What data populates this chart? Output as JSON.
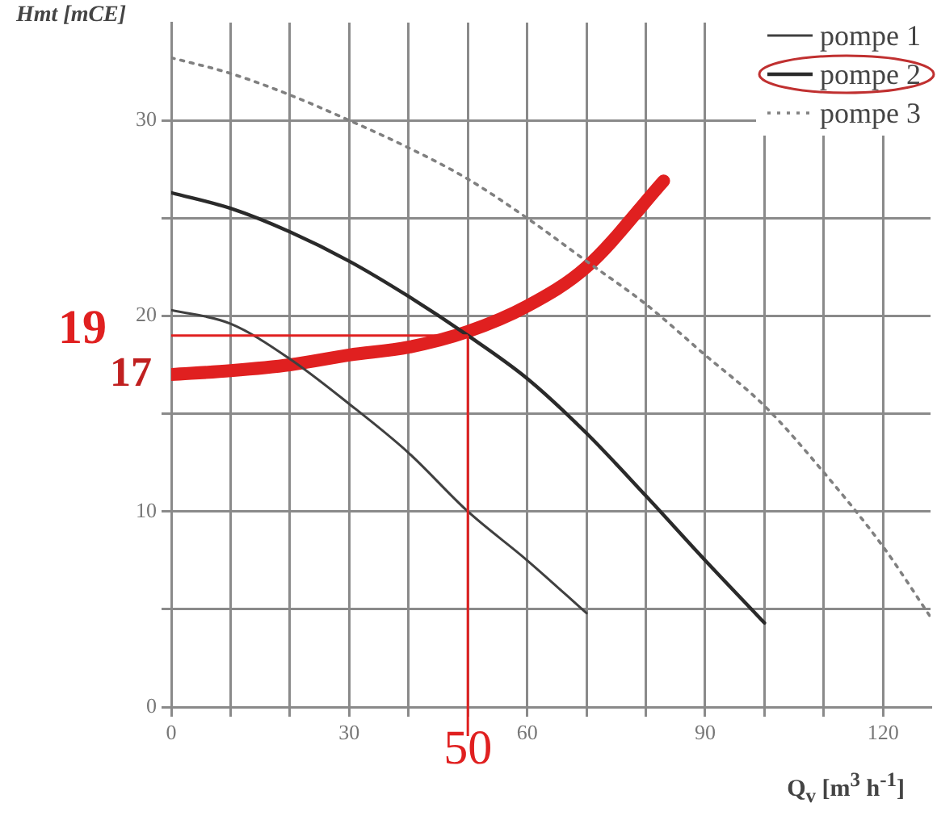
{
  "chart_data": {
    "type": "line",
    "xlabel": "Q$_{v}$ [m$^{3}$ h$^{-1}$]",
    "ylabel": "Hmt [mCE]",
    "xlim": [
      0,
      128
    ],
    "ylim": [
      0,
      35
    ],
    "xticks": [
      0,
      {
        "value": 10,
        "label": null
      },
      {
        "value": 20,
        "label": null
      },
      30,
      {
        "value": 40,
        "label": null
      },
      {
        "value": 50,
        "label": null
      },
      60,
      {
        "value": 70,
        "label": null
      },
      {
        "value": 80,
        "label": null
      },
      90,
      {
        "value": 100,
        "label": null
      },
      {
        "value": 110,
        "label": null
      },
      120
    ],
    "yticks": [
      0,
      {
        "value": 5,
        "label": null
      },
      10,
      {
        "value": 15,
        "label": null
      },
      20,
      {
        "value": 25,
        "label": null
      },
      30
    ],
    "grid": true,
    "legend": "top right",
    "marker": "none",
    "series": [
      {
        "name": "pompe 1",
        "color": "#404040",
        "line_style": "solid",
        "x": [
          0,
          10,
          20,
          30,
          40,
          50,
          60,
          70
        ],
        "values": [
          20.3,
          19.6,
          17.8,
          15.5,
          13,
          10,
          7.5,
          4.8
        ]
      },
      {
        "name": "pompe 2",
        "color": "#2a2a2a",
        "line_style": "solid",
        "x": [
          0,
          10,
          20,
          30,
          40,
          50,
          60,
          70,
          80,
          90,
          100
        ],
        "values": [
          26.3,
          25.5,
          24.3,
          22.8,
          21,
          19,
          16.8,
          14,
          10.8,
          7.5,
          4.3
        ]
      },
      {
        "name": "pompe 3",
        "color": "#808080",
        "line_style": "dotted",
        "x": [
          0,
          10,
          20,
          30,
          40,
          50,
          60,
          70,
          80,
          90,
          100,
          110,
          120,
          128
        ],
        "values": [
          33.2,
          32.4,
          31.3,
          30,
          28.6,
          27,
          25,
          22.8,
          20.6,
          18,
          15.4,
          12,
          8.2,
          4.6
        ]
      },
      {
        "color": "#e02020",
        "line_style": "solid",
        "x": [
          0,
          10,
          20,
          30,
          40,
          50,
          60,
          70,
          83
        ],
        "values": [
          17,
          17.2,
          17.5,
          18,
          18.4,
          19.2,
          20.5,
          22.5,
          26.9
        ]
      }
    ],
    "ref_lines": [
      {
        "axis": "y",
        "value": 19,
        "label": "19",
        "color": "#e02020"
      },
      {
        "axis": "x",
        "value": 50,
        "label": "50",
        "color": "#e02020"
      }
    ],
    "annotations": [
      {
        "text": "17",
        "x": 0,
        "y": 17
      }
    ]
  }
}
